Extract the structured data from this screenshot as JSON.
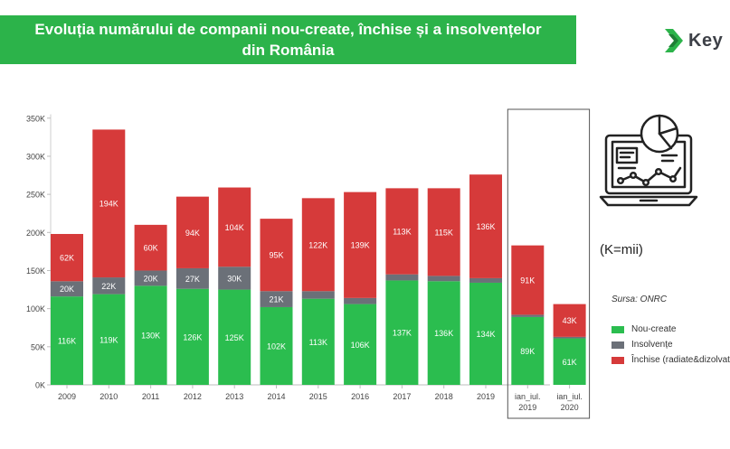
{
  "title": {
    "line1": "Evoluția numărului de companii nou-create, închise și a insolvențelor",
    "line2": "din România"
  },
  "brand": {
    "text": "Key",
    "logo_icon": "chevron-arrow-logo"
  },
  "units_note": "(K=mii)",
  "source": "Sursa: ONRC",
  "colors": {
    "banner": "#2cb34a",
    "nou_create": "#2bbd4f",
    "insolvente": "#6b7078",
    "inchise": "#d63a3a"
  },
  "legend": [
    {
      "label": "Nou-create",
      "color": "#2bbd4f"
    },
    {
      "label": "Insolvențe",
      "color": "#6b7078"
    },
    {
      "label": "Închise (radiate&dizolvat",
      "color": "#d63a3a"
    }
  ],
  "illustration_icon": "laptop-analytics-icon",
  "chart_data": {
    "type": "bar",
    "stacked": true,
    "categories": [
      "2009",
      "2010",
      "2011",
      "2012",
      "2013",
      "2014",
      "2015",
      "2016",
      "2017",
      "2018",
      "2019",
      "ian_iul. 2019",
      "ian_iul. 2020"
    ],
    "category_lines": [
      [
        "2009"
      ],
      [
        "2010"
      ],
      [
        "2011"
      ],
      [
        "2012"
      ],
      [
        "2013"
      ],
      [
        "2014"
      ],
      [
        "2015"
      ],
      [
        "2016"
      ],
      [
        "2017"
      ],
      [
        "2018"
      ],
      [
        "2019"
      ],
      [
        "ian_iul.",
        "2019"
      ],
      [
        "ian_iul.",
        "2020"
      ]
    ],
    "series": [
      {
        "name": "Nou-create",
        "values": [
          116,
          119,
          130,
          126,
          125,
          102,
          113,
          106,
          137,
          136,
          134,
          89,
          61
        ],
        "labels": [
          "116K",
          "119K",
          "130K",
          "126K",
          "125K",
          "102K",
          "113K",
          "106K",
          "137K",
          "136K",
          "134K",
          "89K",
          "61K"
        ]
      },
      {
        "name": "Insolvențe",
        "values": [
          20,
          22,
          20,
          27,
          30,
          21,
          10,
          8,
          8,
          7,
          6,
          3,
          2
        ],
        "labels": [
          "20K",
          "22K",
          "20K",
          "27K",
          "30K",
          "21K",
          "",
          "",
          "",
          "",
          "",
          "",
          ""
        ]
      },
      {
        "name": "Închise (radiate&dizolvat",
        "values": [
          62,
          194,
          60,
          94,
          104,
          95,
          122,
          139,
          113,
          115,
          136,
          91,
          43
        ],
        "labels": [
          "62K",
          "194K",
          "60K",
          "94K",
          "104K",
          "95K",
          "122K",
          "139K",
          "113K",
          "115K",
          "136K",
          "91K",
          "43K"
        ]
      }
    ],
    "y_ticks": [
      0,
      50,
      100,
      150,
      200,
      250,
      300,
      350
    ],
    "y_tick_labels": [
      "0K",
      "50K",
      "100K",
      "150K",
      "200K",
      "250K",
      "300K",
      "350K"
    ],
    "ylim": [
      0,
      355
    ],
    "highlighted_categories": [
      "ian_iul. 2019",
      "ian_iul. 2020"
    ],
    "grid": false,
    "legend_position": "right"
  }
}
